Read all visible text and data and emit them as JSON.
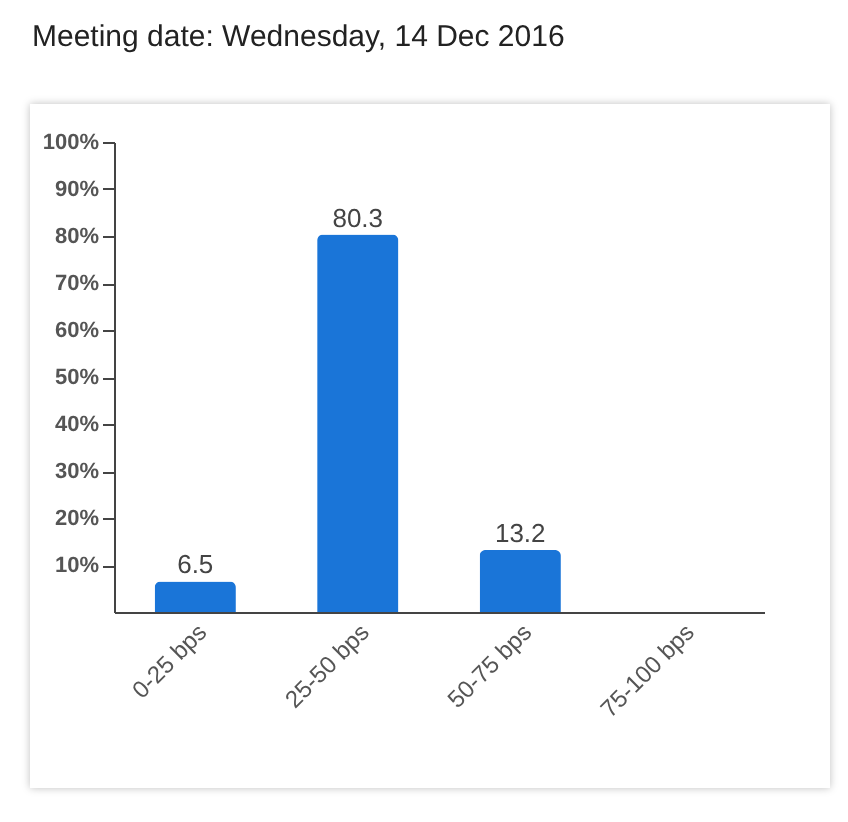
{
  "chart_data": {
    "type": "bar",
    "title": "Meeting date: Wednesday, 14 Dec 2016",
    "categories": [
      "0-25 bps",
      "25-50 bps",
      "50-75 bps",
      "75-100 bps"
    ],
    "values": [
      6.5,
      80.3,
      13.2,
      0
    ],
    "value_labels": [
      "6.5",
      "80.3",
      "13.2",
      null
    ],
    "color": "#1a75d8",
    "ylim": [
      0,
      100
    ],
    "yticks": [
      {
        "value": 10,
        "label": "10%"
      },
      {
        "value": 20,
        "label": "20%"
      },
      {
        "value": 30,
        "label": "30%"
      },
      {
        "value": 40,
        "label": "40%"
      },
      {
        "value": 50,
        "label": "50%"
      },
      {
        "value": 60,
        "label": "60%"
      },
      {
        "value": 70,
        "label": "70%"
      },
      {
        "value": 80,
        "label": "80%"
      },
      {
        "value": 90,
        "label": "90%"
      },
      {
        "value": 100,
        "label": "100%"
      }
    ],
    "grid": false
  }
}
